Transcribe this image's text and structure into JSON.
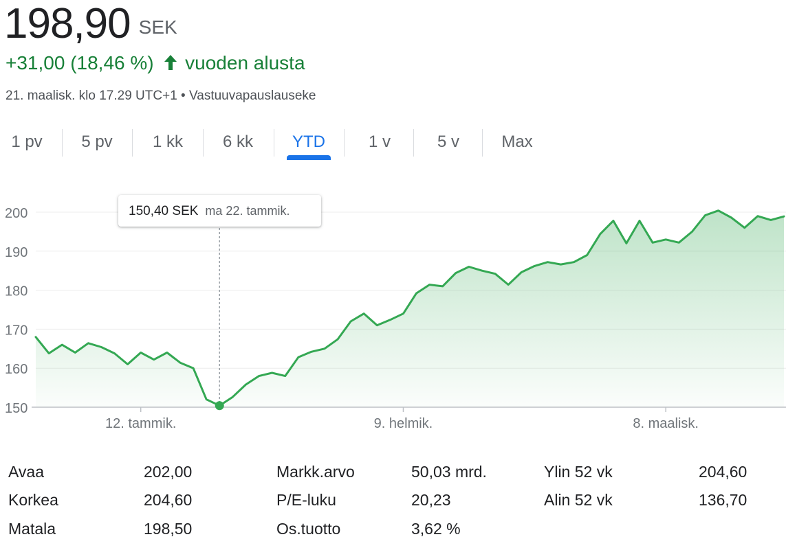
{
  "quote": {
    "price": "198,90",
    "currency": "SEK",
    "change": "+31,00 (18,46 %)",
    "change_icon": "arrow-up-icon",
    "change_period": "vuoden alusta",
    "timestamp": "21. maalisk. klo 17.29 UTC+1",
    "separator": "•",
    "disclaimer": "Vastuuvapauslauseke"
  },
  "tabs": [
    {
      "label": "1 pv",
      "active": false
    },
    {
      "label": "5 pv",
      "active": false
    },
    {
      "label": "1 kk",
      "active": false
    },
    {
      "label": "6 kk",
      "active": false
    },
    {
      "label": "YTD",
      "active": true
    },
    {
      "label": "1 v",
      "active": false
    },
    {
      "label": "5 v",
      "active": false
    },
    {
      "label": "Max",
      "active": false
    }
  ],
  "tooltip": {
    "price": "150,40 SEK",
    "date": "ma 22. tammik."
  },
  "colors": {
    "line": "#34a853",
    "positive_text": "#188038",
    "active_tab": "#1a73e8"
  },
  "chart_data": {
    "type": "area",
    "y_ticks": [
      "150",
      "160",
      "170",
      "180",
      "190",
      "200"
    ],
    "ylim": [
      150,
      200
    ],
    "x_tick_labels": [
      "12. tammik.",
      "9. helmik.",
      "8. maalisk."
    ],
    "x_tick_indices": [
      8,
      28,
      48
    ],
    "highlight_index": 14,
    "grid": true,
    "values": [
      168.0,
      163.8,
      166.0,
      164.0,
      166.4,
      165.4,
      163.8,
      161.0,
      164.0,
      162.2,
      164.0,
      161.4,
      160.0,
      152.0,
      150.4,
      152.6,
      155.8,
      158.0,
      158.8,
      158.0,
      162.8,
      164.2,
      165.0,
      167.4,
      172.0,
      174.0,
      171.0,
      172.4,
      174.0,
      179.2,
      181.4,
      181.0,
      184.4,
      186.0,
      185.0,
      184.2,
      181.4,
      184.6,
      186.2,
      187.2,
      186.6,
      187.2,
      189.0,
      194.4,
      197.8,
      192.0,
      197.8,
      192.2,
      193.0,
      192.2,
      195.0,
      199.2,
      200.4,
      198.6,
      196.0,
      199.0,
      198.0,
      198.9
    ]
  },
  "stats": [
    {
      "label": "Avaa",
      "value": "202,00"
    },
    {
      "label": "Korkea",
      "value": "204,60"
    },
    {
      "label": "Matala",
      "value": "198,50"
    },
    {
      "label": "Markk.arvo",
      "value": "50,03 mrd."
    },
    {
      "label": "P/E-luku",
      "value": "20,23"
    },
    {
      "label": "Os.tuotto",
      "value": "3,62 %"
    },
    {
      "label": "Ylin 52 vk",
      "value": "204,60"
    },
    {
      "label": "Alin 52 vk",
      "value": "136,70"
    }
  ]
}
